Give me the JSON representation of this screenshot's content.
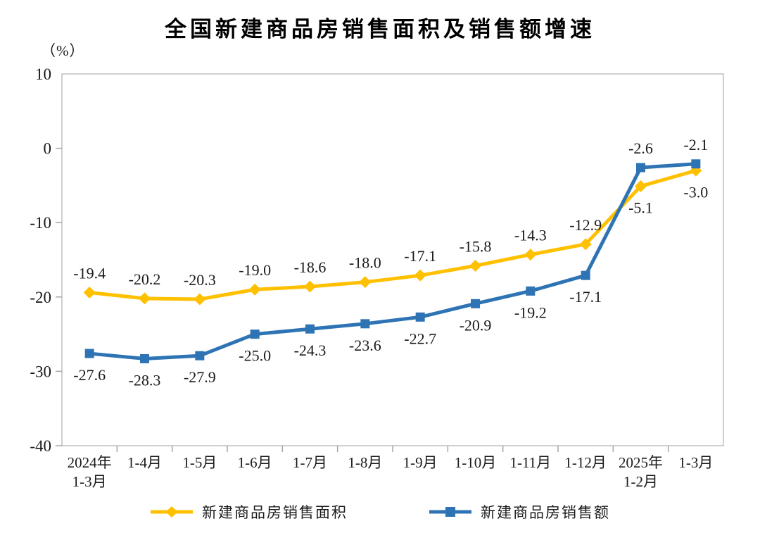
{
  "chart_data": {
    "type": "line",
    "title": "全国新建商品房销售面积及销售额增速",
    "unit_label": "（%）",
    "categories": [
      "2024年\n1-3月",
      "1-4月",
      "1-5月",
      "1-6月",
      "1-7月",
      "1-8月",
      "1-9月",
      "1-10月",
      "1-11月",
      "1-12月",
      "2025年\n1-2月",
      "1-3月"
    ],
    "y_ticks": [
      10,
      0,
      -10,
      -20,
      -30,
      -40
    ],
    "ylim": [
      -40,
      10
    ],
    "grid": false,
    "legend_position": "bottom",
    "colors": {
      "plot_border": "#bfbfbf",
      "tick": "#a6a6a6",
      "label_text": "#1a1a1a"
    },
    "series": [
      {
        "name": "新建商品房销售面积",
        "color": "#FFC000",
        "marker": "diamond",
        "values": [
          -19.4,
          -20.2,
          -20.3,
          -19.0,
          -18.6,
          -18.0,
          -17.1,
          -15.8,
          -14.3,
          -12.9,
          -5.1,
          -3.0
        ],
        "label_side": [
          "above",
          "above",
          "above",
          "above",
          "above",
          "above",
          "above",
          "above",
          "above",
          "above",
          "below",
          "below"
        ]
      },
      {
        "name": "新建商品房销售额",
        "color": "#2E74B5",
        "marker": "square",
        "values": [
          -27.6,
          -28.3,
          -27.9,
          -25.0,
          -24.3,
          -23.6,
          -22.7,
          -20.9,
          -19.2,
          -17.1,
          -2.6,
          -2.1
        ],
        "label_side": [
          "below",
          "below",
          "below",
          "below",
          "below",
          "below",
          "below",
          "below",
          "below",
          "below",
          "above",
          "above"
        ]
      }
    ]
  }
}
